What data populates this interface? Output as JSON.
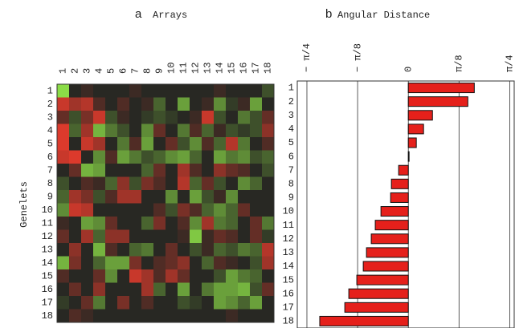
{
  "chart_data": [
    {
      "type": "heatmap",
      "panel_label": "a",
      "title": "Arrays",
      "ylabel": "Genelets",
      "columns": [
        "1",
        "2",
        "3",
        "4",
        "5",
        "6",
        "7",
        "8",
        "9",
        "10",
        "11",
        "12",
        "13",
        "14",
        "15",
        "16",
        "17",
        "18"
      ],
      "rows": [
        "1",
        "2",
        "3",
        "4",
        "5",
        "6",
        "7",
        "8",
        "9",
        "10",
        "11",
        "12",
        "13",
        "14",
        "15",
        "16",
        "17",
        "18"
      ],
      "zlim": [
        -1,
        1
      ],
      "values": [
        [
          0.9,
          0,
          -0.1,
          0,
          0,
          0,
          -0.1,
          0,
          0,
          0,
          0,
          0,
          0,
          -0.1,
          0,
          0,
          0,
          0.2
        ],
        [
          -0.8,
          -0.6,
          -0.7,
          -0.2,
          0,
          -0.2,
          0,
          -0.1,
          0.3,
          0,
          0.6,
          0,
          -0.1,
          0.5,
          0.1,
          -0.1,
          0.6,
          0
        ],
        [
          -0.3,
          0.2,
          -0.4,
          -0.8,
          0.2,
          -0.1,
          0,
          0.1,
          0.2,
          0.1,
          0,
          -0.1,
          -0.8,
          0.2,
          0,
          0.4,
          0.2,
          -0.3
        ],
        [
          -0.9,
          0.3,
          -0.6,
          0.7,
          0.4,
          0.2,
          0,
          0.5,
          -0.3,
          0,
          0.4,
          -0.2,
          0.3,
          -0.1,
          0.2,
          0.1,
          0.2,
          -0.5
        ],
        [
          -0.9,
          0,
          -0.8,
          -0.6,
          0,
          0.4,
          -0.2,
          0.6,
          0,
          -0.3,
          0.2,
          0.5,
          -0.2,
          0.3,
          -0.7,
          0.4,
          0,
          -0.2
        ],
        [
          -0.8,
          -0.9,
          0,
          0.5,
          -0.2,
          0.6,
          0.4,
          0.2,
          0.3,
          0.5,
          0.6,
          0.3,
          0,
          0.6,
          0.4,
          0.5,
          0.2,
          0.3
        ],
        [
          0,
          -0.3,
          0.7,
          0.6,
          0,
          0,
          0,
          0.3,
          -0.3,
          0,
          -0.6,
          -0.2,
          0,
          -0.5,
          -0.3,
          -0.2,
          0,
          0.2
        ],
        [
          0.2,
          0,
          -0.2,
          -0.1,
          0.3,
          -0.5,
          0.2,
          -0.4,
          -0.2,
          0,
          -0.7,
          0.3,
          -0.3,
          0.2,
          0,
          0.5,
          0.3,
          0
        ],
        [
          0.3,
          -0.6,
          -0.4,
          0.2,
          -0.2,
          -0.6,
          -0.6,
          0,
          0,
          0.5,
          0,
          0.6,
          0.2,
          -0.1,
          0.5,
          0,
          0,
          0
        ],
        [
          0.5,
          -0.8,
          -0.7,
          0,
          0,
          0,
          0,
          0,
          -0.2,
          0.2,
          -0.4,
          -0.2,
          0.3,
          0.5,
          0.3,
          -0.3,
          0,
          0
        ],
        [
          -0.1,
          0,
          0.6,
          0.5,
          -0.3,
          0,
          0,
          0.3,
          -0.4,
          0,
          -0.2,
          0.5,
          -0.6,
          0.4,
          0.3,
          0,
          -0.3,
          0.4
        ],
        [
          -0.3,
          0,
          -0.6,
          0.3,
          -0.5,
          -0.5,
          0,
          0,
          0,
          0,
          -0.1,
          0.8,
          -0.1,
          -0.3,
          -0.2,
          0,
          -0.3,
          0.1
        ],
        [
          0,
          -0.5,
          0,
          0.7,
          -0.2,
          0,
          0.3,
          0.4,
          0,
          -0.3,
          0,
          0.2,
          -0.1,
          0.3,
          0.2,
          0.4,
          0.3,
          -0.7
        ],
        [
          0.7,
          -0.4,
          0,
          0.3,
          0.6,
          0.6,
          -0.4,
          0,
          -0.2,
          -0.3,
          -0.5,
          0,
          0.3,
          -0.2,
          -0.1,
          0,
          0.2,
          -0.6
        ],
        [
          -0.2,
          0,
          0,
          -0.3,
          0.5,
          0,
          -0.8,
          -0.6,
          -0.2,
          -0.6,
          -0.3,
          0,
          0,
          0.2,
          0.6,
          0.4,
          0.3,
          0
        ],
        [
          0,
          -0.3,
          0,
          -0.5,
          0,
          0,
          0,
          -0.6,
          0.3,
          0,
          0.6,
          0,
          0.4,
          0.6,
          0.6,
          0.7,
          0.2,
          -0.3
        ],
        [
          0.1,
          0,
          -0.3,
          0.4,
          0,
          -0.4,
          0,
          -0.2,
          0,
          0,
          0.2,
          0.1,
          0,
          0.6,
          0.5,
          0.3,
          0.6,
          0
        ],
        [
          0,
          -0.2,
          -0.1,
          0,
          0,
          0,
          0,
          0,
          0,
          0,
          0,
          0,
          0,
          0,
          -0.1,
          0,
          0,
          0
        ]
      ]
    },
    {
      "type": "hbar",
      "panel_label": "b",
      "title": "Angular Distance",
      "color": "#e5201b",
      "categories": [
        "1",
        "2",
        "3",
        "4",
        "5",
        "6",
        "7",
        "8",
        "9",
        "10",
        "11",
        "12",
        "13",
        "14",
        "15",
        "16",
        "17",
        "18"
      ],
      "values": [
        0.511,
        0.461,
        0.187,
        0.118,
        0.062,
        0.006,
        -0.075,
        -0.131,
        -0.137,
        -0.212,
        -0.256,
        -0.287,
        -0.324,
        -0.349,
        -0.399,
        -0.461,
        -0.492,
        -0.686
      ],
      "xlim": [
        -0.86,
        0.82
      ],
      "xticks": [
        {
          "value": -0.7854,
          "label": "− π/4"
        },
        {
          "value": -0.3927,
          "label": "− π/8"
        },
        0,
        {
          "value": 0.3927,
          "label": "π/8"
        },
        {
          "value": 0.7854,
          "label": "π/4"
        }
      ],
      "grid": true
    }
  ]
}
